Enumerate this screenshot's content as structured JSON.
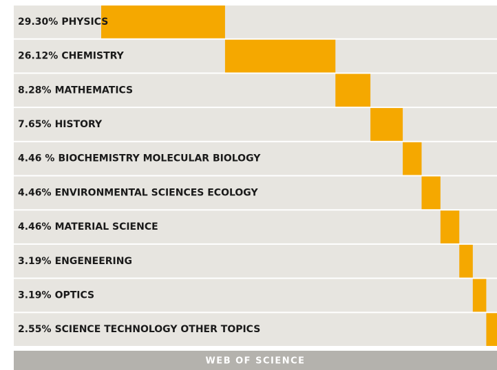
{
  "chart_data": {
    "type": "waterfall-bar",
    "categories": [
      "PHYSICS",
      "CHEMISTRY",
      "MATHEMATICS",
      "HISTORY",
      "BIOCHEMISTRY MOLECULAR BIOLOGY",
      "ENVIRONMENTAL SCIENCES ECOLOGY",
      "MATERIAL SCIENCE",
      "ENGENEERING",
      "OPTICS",
      "SCIENCE TECHNOLOGY OTHER TOPICS"
    ],
    "values": [
      29.3,
      26.12,
      8.28,
      7.65,
      4.46,
      4.46,
      4.46,
      3.19,
      3.19,
      2.55
    ],
    "value_labels": [
      "29.30%",
      "26.12%",
      "8.28%",
      "7.65%",
      "4.46 %",
      "4.46%",
      "4.46%",
      "3.19%",
      "3.19%",
      "2.55%"
    ],
    "color": "#f5a800",
    "source": "WEB OF SCIENCE"
  }
}
